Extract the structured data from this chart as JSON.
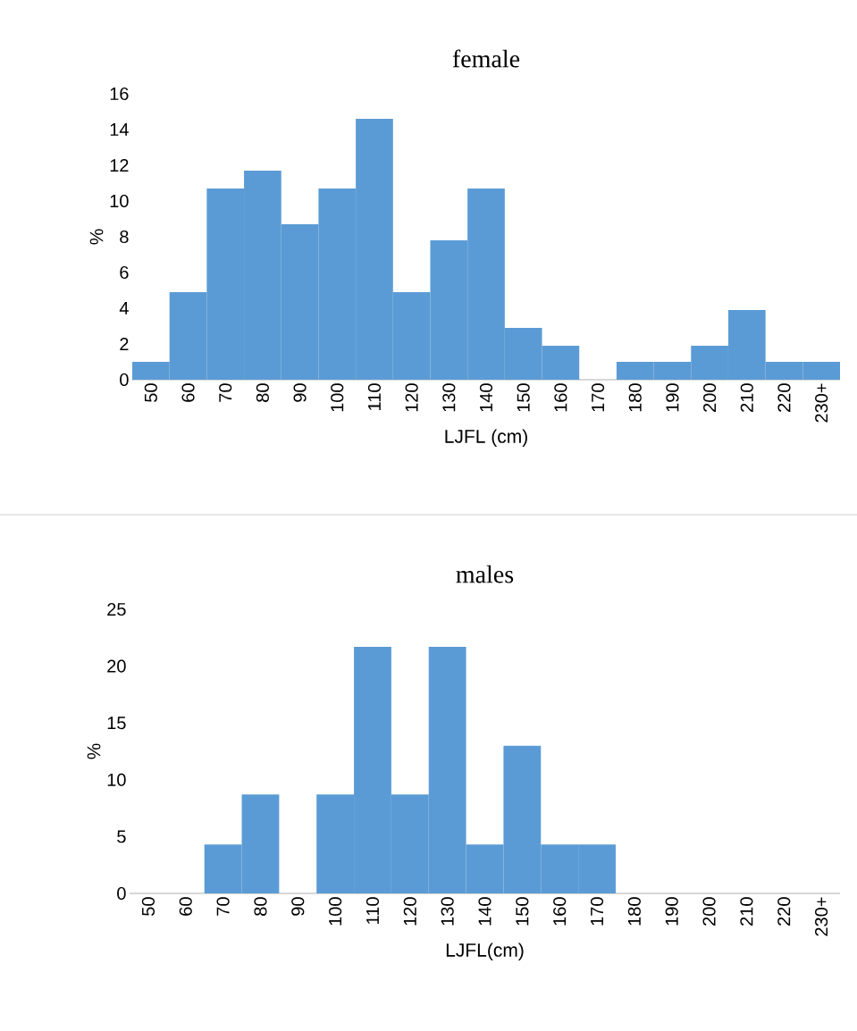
{
  "chart_data": [
    {
      "type": "bar",
      "title": "female",
      "xlabel": "LJFL (cm)",
      "ylabel": "%",
      "color": "#5b9bd5",
      "categories": [
        "50",
        "60",
        "70",
        "80",
        "90",
        "100",
        "110",
        "120",
        "130",
        "140",
        "150",
        "160",
        "170",
        "180",
        "190",
        "200",
        "210",
        "220",
        "230+"
      ],
      "values": [
        1.0,
        4.9,
        10.7,
        11.7,
        8.7,
        10.7,
        14.6,
        4.9,
        7.8,
        10.7,
        2.9,
        1.9,
        0,
        1.0,
        1.0,
        1.9,
        3.9,
        1.0,
        1.0
      ],
      "ylim": [
        0,
        16
      ],
      "yticks": [
        0,
        2,
        4,
        6,
        8,
        10,
        12,
        14,
        16
      ]
    },
    {
      "type": "bar",
      "title": "males",
      "xlabel": "LJFL(cm)",
      "ylabel": "%",
      "color": "#5b9bd5",
      "categories": [
        "50",
        "60",
        "70",
        "80",
        "90",
        "100",
        "110",
        "120",
        "130",
        "140",
        "150",
        "160",
        "170",
        "180",
        "190",
        "200",
        "210",
        "220",
        "230+"
      ],
      "values": [
        0,
        0,
        4.3,
        8.7,
        0,
        8.7,
        21.7,
        8.7,
        21.7,
        4.3,
        13.0,
        4.3,
        4.3,
        0,
        0,
        0,
        0,
        0,
        0
      ],
      "ylim": [
        0,
        25
      ],
      "yticks": [
        0,
        5,
        10,
        15,
        20,
        25
      ]
    }
  ]
}
